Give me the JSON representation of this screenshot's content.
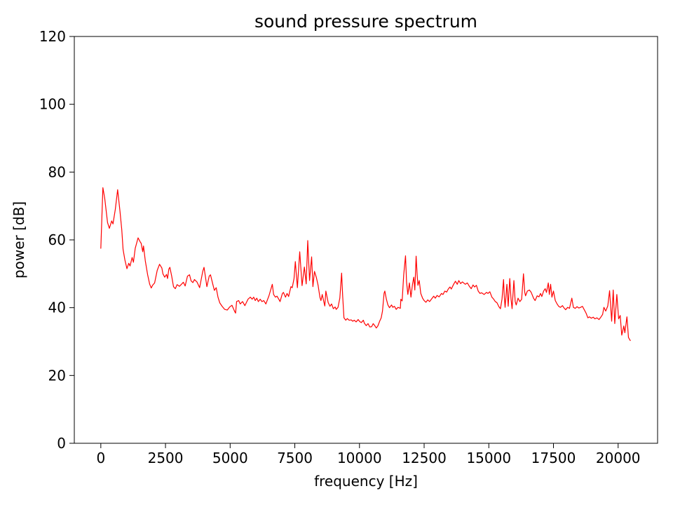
{
  "chart_data": {
    "type": "line",
    "title": "sound pressure spectrum",
    "xlabel": "frequency [Hz]",
    "ylabel": "power [dB]",
    "xlim": [
      -1025,
      21525
    ],
    "ylim": [
      0,
      120
    ],
    "xticks": [
      0,
      2500,
      5000,
      7500,
      10000,
      12500,
      15000,
      17500,
      20000
    ],
    "yticks": [
      0,
      20,
      40,
      60,
      80,
      100,
      120
    ],
    "grid": false,
    "legend": false,
    "line_color": "#ff0000",
    "spine_color": "#000000",
    "background_color": "#ffffff",
    "series": [
      {
        "name": "sound pressure spectrum",
        "points": [
          [
            0,
            57.5
          ],
          [
            80,
            75.4
          ],
          [
            150,
            72.3
          ],
          [
            260,
            65.1
          ],
          [
            330,
            63.4
          ],
          [
            420,
            65.6
          ],
          [
            470,
            64.7
          ],
          [
            560,
            69.0
          ],
          [
            650,
            74.8
          ],
          [
            740,
            68.5
          ],
          [
            810,
            63.0
          ],
          [
            860,
            57.2
          ],
          [
            930,
            54.1
          ],
          [
            1010,
            51.5
          ],
          [
            1080,
            53.1
          ],
          [
            1130,
            52.3
          ],
          [
            1210,
            54.8
          ],
          [
            1260,
            53.4
          ],
          [
            1330,
            57.5
          ],
          [
            1440,
            60.6
          ],
          [
            1530,
            59.3
          ],
          [
            1560,
            59.0
          ],
          [
            1620,
            56.5
          ],
          [
            1650,
            58.2
          ],
          [
            1720,
            53.8
          ],
          [
            1810,
            49.7
          ],
          [
            1890,
            46.9
          ],
          [
            1950,
            45.8
          ],
          [
            2000,
            46.6
          ],
          [
            2080,
            47.3
          ],
          [
            2180,
            51.0
          ],
          [
            2270,
            52.8
          ],
          [
            2360,
            51.7
          ],
          [
            2400,
            50.0
          ],
          [
            2470,
            49.0
          ],
          [
            2540,
            49.8
          ],
          [
            2580,
            48.6
          ],
          [
            2630,
            51.4
          ],
          [
            2670,
            51.9
          ],
          [
            2740,
            49.3
          ],
          [
            2810,
            46.2
          ],
          [
            2880,
            45.6
          ],
          [
            2950,
            46.8
          ],
          [
            3040,
            46.3
          ],
          [
            3130,
            47.0
          ],
          [
            3190,
            47.5
          ],
          [
            3260,
            46.4
          ],
          [
            3350,
            49.3
          ],
          [
            3430,
            49.7
          ],
          [
            3490,
            47.9
          ],
          [
            3560,
            47.4
          ],
          [
            3620,
            48.3
          ],
          [
            3715,
            47.6
          ],
          [
            3820,
            45.9
          ],
          [
            3940,
            50.7
          ],
          [
            3990,
            51.9
          ],
          [
            4060,
            48.3
          ],
          [
            4100,
            46.2
          ],
          [
            4190,
            49.3
          ],
          [
            4240,
            49.7
          ],
          [
            4330,
            46.9
          ],
          [
            4390,
            45.1
          ],
          [
            4460,
            45.9
          ],
          [
            4530,
            43.1
          ],
          [
            4600,
            41.4
          ],
          [
            4690,
            40.4
          ],
          [
            4790,
            39.5
          ],
          [
            4890,
            39.3
          ],
          [
            4980,
            40.2
          ],
          [
            5070,
            40.7
          ],
          [
            5180,
            38.8
          ],
          [
            5210,
            38.4
          ],
          [
            5250,
            41.8
          ],
          [
            5330,
            42.1
          ],
          [
            5390,
            41.1
          ],
          [
            5480,
            41.8
          ],
          [
            5570,
            40.6
          ],
          [
            5690,
            42.5
          ],
          [
            5780,
            43.1
          ],
          [
            5850,
            42.5
          ],
          [
            5910,
            43.1
          ],
          [
            5970,
            42.1
          ],
          [
            6030,
            42.8
          ],
          [
            6090,
            41.8
          ],
          [
            6160,
            42.5
          ],
          [
            6230,
            41.8
          ],
          [
            6300,
            42.1
          ],
          [
            6380,
            41.1
          ],
          [
            6500,
            43.5
          ],
          [
            6630,
            46.9
          ],
          [
            6680,
            43.9
          ],
          [
            6750,
            43.1
          ],
          [
            6810,
            43.4
          ],
          [
            6880,
            42.5
          ],
          [
            6930,
            41.8
          ],
          [
            7020,
            44.2
          ],
          [
            7060,
            44.5
          ],
          [
            7140,
            43.1
          ],
          [
            7200,
            44.2
          ],
          [
            7260,
            43.3
          ],
          [
            7350,
            46.2
          ],
          [
            7400,
            45.9
          ],
          [
            7470,
            48.6
          ],
          [
            7520,
            53.6
          ],
          [
            7600,
            45.9
          ],
          [
            7690,
            56.5
          ],
          [
            7780,
            46.5
          ],
          [
            7870,
            52.0
          ],
          [
            7940,
            47.0
          ],
          [
            8000,
            59.8
          ],
          [
            8070,
            48.0
          ],
          [
            8150,
            55.0
          ],
          [
            8200,
            46.2
          ],
          [
            8260,
            50.7
          ],
          [
            8330,
            49.0
          ],
          [
            8400,
            46.6
          ],
          [
            8470,
            43.1
          ],
          [
            8510,
            42.1
          ],
          [
            8560,
            43.9
          ],
          [
            8620,
            41.8
          ],
          [
            8660,
            40.5
          ],
          [
            8700,
            44.9
          ],
          [
            8790,
            41.5
          ],
          [
            8860,
            40.4
          ],
          [
            8920,
            41.1
          ],
          [
            8990,
            39.7
          ],
          [
            9060,
            40.2
          ],
          [
            9100,
            39.5
          ],
          [
            9170,
            40.1
          ],
          [
            9240,
            42.8
          ],
          [
            9310,
            50.2
          ],
          [
            9350,
            43.5
          ],
          [
            9400,
            37.0
          ],
          [
            9470,
            36.3
          ],
          [
            9530,
            36.8
          ],
          [
            9600,
            36.3
          ],
          [
            9680,
            36.4
          ],
          [
            9740,
            36.0
          ],
          [
            9800,
            36.3
          ],
          [
            9870,
            35.8
          ],
          [
            9950,
            36.5
          ],
          [
            10010,
            35.9
          ],
          [
            10070,
            35.6
          ],
          [
            10150,
            36.3
          ],
          [
            10190,
            35.4
          ],
          [
            10260,
            34.7
          ],
          [
            10330,
            35.3
          ],
          [
            10400,
            34.3
          ],
          [
            10470,
            34.4
          ],
          [
            10530,
            35.3
          ],
          [
            10600,
            34.6
          ],
          [
            10650,
            34.0
          ],
          [
            10710,
            34.6
          ],
          [
            10780,
            36.0
          ],
          [
            10840,
            37.0
          ],
          [
            10890,
            39.0
          ],
          [
            10950,
            44.2
          ],
          [
            10980,
            44.9
          ],
          [
            11040,
            42.5
          ],
          [
            11100,
            40.8
          ],
          [
            11160,
            40.0
          ],
          [
            11240,
            40.8
          ],
          [
            11290,
            40.1
          ],
          [
            11350,
            40.4
          ],
          [
            11420,
            39.5
          ],
          [
            11490,
            40.1
          ],
          [
            11580,
            39.8
          ],
          [
            11600,
            42.5
          ],
          [
            11650,
            42.0
          ],
          [
            11710,
            49.7
          ],
          [
            11780,
            55.3
          ],
          [
            11820,
            47.6
          ],
          [
            11870,
            43.9
          ],
          [
            11930,
            47.3
          ],
          [
            11990,
            43.1
          ],
          [
            12050,
            46.9
          ],
          [
            12100,
            49.0
          ],
          [
            12140,
            45.2
          ],
          [
            12190,
            55.2
          ],
          [
            12230,
            49.7
          ],
          [
            12260,
            46.6
          ],
          [
            12310,
            48.0
          ],
          [
            12370,
            44.2
          ],
          [
            12440,
            42.8
          ],
          [
            12500,
            42.1
          ],
          [
            12570,
            41.6
          ],
          [
            12640,
            42.3
          ],
          [
            12710,
            41.8
          ],
          [
            12800,
            42.7
          ],
          [
            12870,
            43.4
          ],
          [
            12930,
            42.8
          ],
          [
            13000,
            43.6
          ],
          [
            13080,
            43.2
          ],
          [
            13170,
            44.2
          ],
          [
            13230,
            43.9
          ],
          [
            13300,
            44.9
          ],
          [
            13370,
            44.6
          ],
          [
            13440,
            45.6
          ],
          [
            13500,
            46.1
          ],
          [
            13550,
            45.5
          ],
          [
            13640,
            46.9
          ],
          [
            13710,
            47.8
          ],
          [
            13780,
            46.9
          ],
          [
            13840,
            48.0
          ],
          [
            13910,
            47.1
          ],
          [
            13980,
            47.6
          ],
          [
            14090,
            46.9
          ],
          [
            14170,
            47.3
          ],
          [
            14240,
            46.4
          ],
          [
            14320,
            45.6
          ],
          [
            14390,
            46.7
          ],
          [
            14450,
            46.1
          ],
          [
            14520,
            46.6
          ],
          [
            14590,
            44.9
          ],
          [
            14660,
            44.2
          ],
          [
            14720,
            44.4
          ],
          [
            14820,
            43.9
          ],
          [
            14910,
            44.5
          ],
          [
            14970,
            44.2
          ],
          [
            15040,
            44.7
          ],
          [
            15120,
            43.1
          ],
          [
            15180,
            42.6
          ],
          [
            15240,
            41.9
          ],
          [
            15320,
            41.4
          ],
          [
            15390,
            40.3
          ],
          [
            15450,
            39.7
          ],
          [
            15510,
            42.5
          ],
          [
            15570,
            48.3
          ],
          [
            15600,
            43.1
          ],
          [
            15630,
            40.1
          ],
          [
            15700,
            46.9
          ],
          [
            15750,
            40.4
          ],
          [
            15810,
            48.6
          ],
          [
            15860,
            42.5
          ],
          [
            15900,
            39.7
          ],
          [
            15970,
            48.0
          ],
          [
            16020,
            41.8
          ],
          [
            16060,
            40.8
          ],
          [
            16130,
            42.8
          ],
          [
            16200,
            41.8
          ],
          [
            16270,
            42.5
          ],
          [
            16340,
            50.0
          ],
          [
            16390,
            44.5
          ],
          [
            16420,
            43.5
          ],
          [
            16490,
            44.9
          ],
          [
            16570,
            45.2
          ],
          [
            16640,
            44.5
          ],
          [
            16730,
            42.8
          ],
          [
            16790,
            42.1
          ],
          [
            16870,
            43.5
          ],
          [
            16940,
            43.2
          ],
          [
            17000,
            44.2
          ],
          [
            17050,
            43.3
          ],
          [
            17120,
            44.9
          ],
          [
            17180,
            45.6
          ],
          [
            17230,
            44.5
          ],
          [
            17300,
            47.3
          ],
          [
            17340,
            43.9
          ],
          [
            17390,
            46.9
          ],
          [
            17440,
            43.1
          ],
          [
            17500,
            44.9
          ],
          [
            17570,
            42.1
          ],
          [
            17640,
            41.1
          ],
          [
            17700,
            40.4
          ],
          [
            17770,
            40.1
          ],
          [
            17850,
            40.6
          ],
          [
            17910,
            39.9
          ],
          [
            17970,
            39.4
          ],
          [
            18050,
            40.1
          ],
          [
            18120,
            39.8
          ],
          [
            18210,
            42.8
          ],
          [
            18270,
            40.1
          ],
          [
            18340,
            39.8
          ],
          [
            18410,
            40.3
          ],
          [
            18480,
            39.9
          ],
          [
            18550,
            40.1
          ],
          [
            18620,
            40.4
          ],
          [
            18690,
            39.4
          ],
          [
            18760,
            38.4
          ],
          [
            18830,
            37.0
          ],
          [
            18890,
            37.3
          ],
          [
            18960,
            36.9
          ],
          [
            19040,
            37.2
          ],
          [
            19100,
            36.7
          ],
          [
            19180,
            37.0
          ],
          [
            19260,
            36.5
          ],
          [
            19330,
            37.2
          ],
          [
            19400,
            38.0
          ],
          [
            19450,
            40.1
          ],
          [
            19520,
            39.0
          ],
          [
            19600,
            40.5
          ],
          [
            19670,
            45.0
          ],
          [
            19750,
            36.0
          ],
          [
            19810,
            45.2
          ],
          [
            19870,
            35.3
          ],
          [
            19950,
            43.9
          ],
          [
            20020,
            36.7
          ],
          [
            20080,
            37.7
          ],
          [
            20140,
            31.9
          ],
          [
            20220,
            34.6
          ],
          [
            20260,
            32.6
          ],
          [
            20340,
            37.3
          ],
          [
            20400,
            31.2
          ],
          [
            20470,
            30.3
          ]
        ]
      }
    ]
  }
}
